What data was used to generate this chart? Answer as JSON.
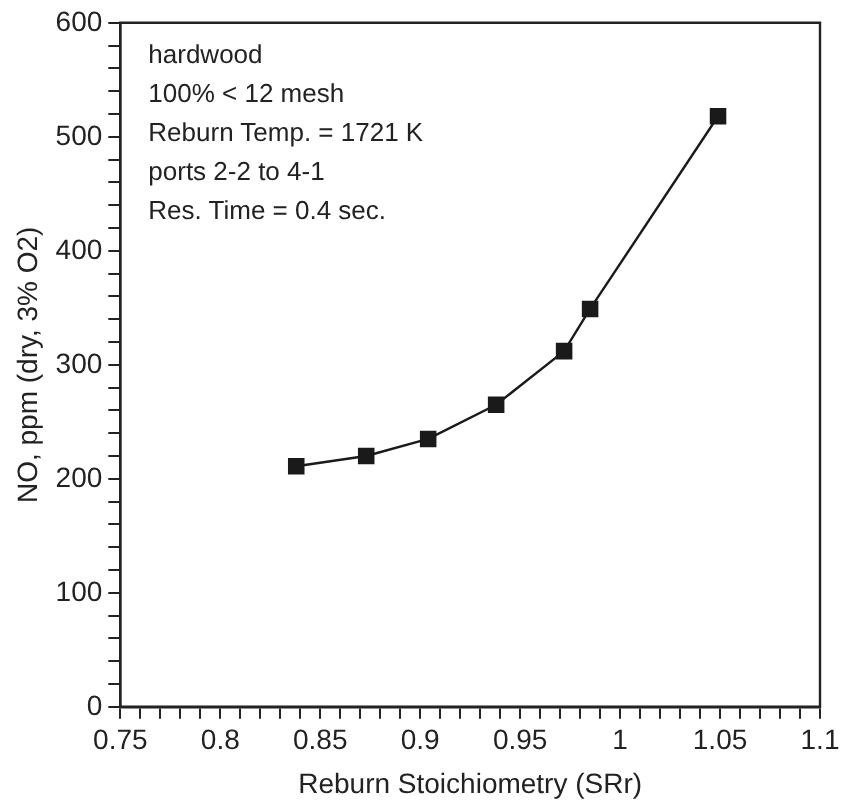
{
  "chart_data": {
    "type": "line",
    "xlabel": "Reburn Stoichiometry (SRr)",
    "ylabel": "NO, ppm (dry, 3% O2)",
    "annotations": [
      "hardwood",
      "100% < 12 mesh",
      "Reburn Temp. = 1721 K",
      "ports 2-2 to 4-1",
      "Res. Time = 0.4 sec."
    ],
    "series": [
      {
        "color": "#1a1a1a",
        "x": [
          0.838,
          0.873,
          0.904,
          0.938,
          0.972,
          0.985,
          1.049
        ],
        "values": [
          211,
          220,
          235,
          265,
          312,
          349,
          518
        ]
      }
    ],
    "xlim": [
      0.75,
      1.1
    ],
    "xticks": [
      0.75,
      {
        "value": 0.76,
        "label": null
      },
      {
        "value": 0.77,
        "label": null
      },
      {
        "value": 0.78,
        "label": null
      },
      {
        "value": 0.79,
        "label": null
      },
      0.8,
      {
        "value": 0.81,
        "label": null
      },
      {
        "value": 0.82,
        "label": null
      },
      {
        "value": 0.83,
        "label": null
      },
      {
        "value": 0.84,
        "label": null
      },
      0.85,
      {
        "value": 0.86,
        "label": null
      },
      {
        "value": 0.87,
        "label": null
      },
      {
        "value": 0.88,
        "label": null
      },
      {
        "value": 0.89,
        "label": null
      },
      0.9,
      {
        "value": 0.91,
        "label": null
      },
      {
        "value": 0.92,
        "label": null
      },
      {
        "value": 0.93,
        "label": null
      },
      {
        "value": 0.94,
        "label": null
      },
      0.95,
      {
        "value": 0.96,
        "label": null
      },
      {
        "value": 0.97,
        "label": null
      },
      {
        "value": 0.98,
        "label": null
      },
      {
        "value": 0.99,
        "label": null
      },
      1,
      {
        "value": 1.01,
        "label": null
      },
      {
        "value": 1.02,
        "label": null
      },
      {
        "value": 1.03,
        "label": null
      },
      {
        "value": 1.04,
        "label": null
      },
      1.05,
      {
        "value": 1.06,
        "label": null
      },
      {
        "value": 1.07,
        "label": null
      },
      {
        "value": 1.08,
        "label": null
      },
      {
        "value": 1.09,
        "label": null
      },
      1.1
    ],
    "ylim": [
      0,
      600
    ],
    "yticks": [
      0,
      {
        "value": 20,
        "label": null
      },
      {
        "value": 40,
        "label": null
      },
      {
        "value": 60,
        "label": null
      },
      {
        "value": 80,
        "label": null
      },
      100,
      {
        "value": 120,
        "label": null
      },
      {
        "value": 140,
        "label": null
      },
      {
        "value": 160,
        "label": null
      },
      {
        "value": 180,
        "label": null
      },
      200,
      {
        "value": 220,
        "label": null
      },
      {
        "value": 240,
        "label": null
      },
      {
        "value": 260,
        "label": null
      },
      {
        "value": 280,
        "label": null
      },
      300,
      {
        "value": 320,
        "label": null
      },
      {
        "value": 340,
        "label": null
      },
      {
        "value": 360,
        "label": null
      },
      {
        "value": 380,
        "label": null
      },
      400,
      {
        "value": 420,
        "label": null
      },
      {
        "value": 440,
        "label": null
      },
      {
        "value": 460,
        "label": null
      },
      {
        "value": 480,
        "label": null
      },
      500,
      {
        "value": 520,
        "label": null
      },
      {
        "value": 540,
        "label": null
      },
      {
        "value": 560,
        "label": null
      },
      {
        "value": 580,
        "label": null
      },
      600
    ],
    "grid": false,
    "legend": false,
    "marker": "square",
    "line_style": "solid"
  }
}
